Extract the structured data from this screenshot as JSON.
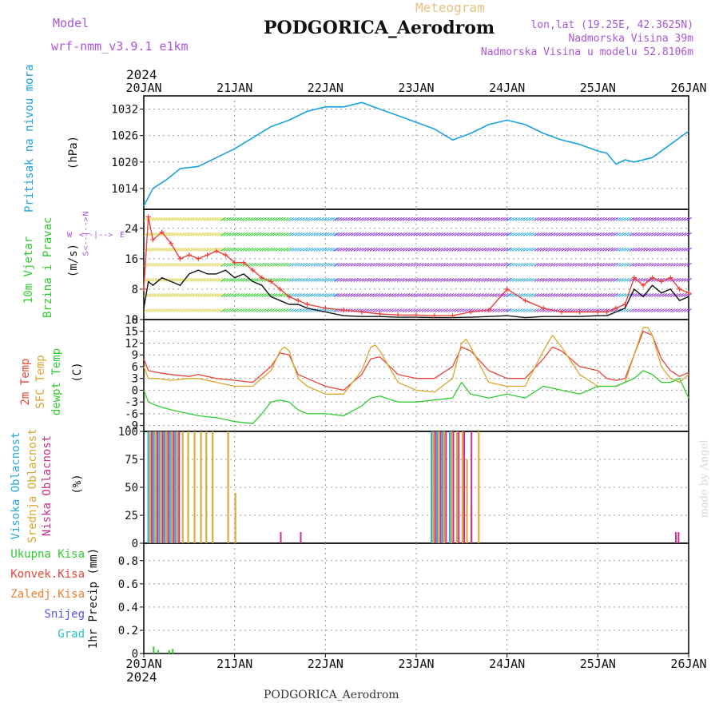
{
  "header": {
    "model_label": "Model",
    "model_name": "wrf-nmm_v3.9.1  e1km",
    "meteogram_label": "Meteogram",
    "station": "PODGORICA_Aerodrom",
    "lonlat": "lon,lat (19.25E, 42.3625N)",
    "elevation": "Nadmorska Visina 39m",
    "model_elevation": "Nadmorska Visina u modelu 52.8106m",
    "footer_station": "PODGORICA_Aerodrom",
    "credit": "made by Angel",
    "year_top": "2024",
    "year_bottom": "2024"
  },
  "colors": {
    "pressure": "#1ba1e2",
    "temp2m": "#e8443a",
    "sfc_temp": "#d9a62e",
    "dewpt": "#2ecc2e",
    "wind_speed": "#111111",
    "gust": "#e8443a",
    "high_cloud": "#29a9e0",
    "mid_cloud": "#d9a62e",
    "low_cloud": "#cc2d8f",
    "precip_total": "#2ecc2e",
    "purple": "#aa55dd",
    "grid": "#999999"
  },
  "labels": {
    "pressure": [
      "Pritisak na nivou mora",
      "(hPa)"
    ],
    "wind": [
      "10m Vjetar",
      "Brzina i Pravac",
      "(m/s)"
    ],
    "wind_compass": [
      "W",
      "<--|-->",
      "E",
      "N",
      "<--|-->",
      "S"
    ],
    "temp": [
      "2m Temp",
      "SFC Temp",
      "dewpt Temp",
      "(C)"
    ],
    "cloud": [
      "Visoka Oblacnost",
      "Srednja Oblacnost",
      "Niska Oblacnost",
      "(%)"
    ],
    "precip_legend": [
      "Ukupna Kisa",
      "Konvek.Kisa",
      "Zaledj.Kisa",
      "Snijeg",
      "Grad"
    ],
    "precip_unit": "1hr Precip (mm)"
  },
  "chart_data": {
    "type": "line",
    "x_days": [
      "20JAN",
      "21JAN",
      "22JAN",
      "23JAN",
      "24JAN",
      "25JAN",
      "26JAN"
    ],
    "panels": [
      {
        "name": "pressure",
        "ylabel": "(hPa)",
        "yticks": [
          1014,
          1020,
          1026,
          1032
        ],
        "ylim": [
          1010,
          1035
        ],
        "series": [
          {
            "key": "pressure",
            "x": [
              0,
              0.1,
              0.25,
              0.4,
              0.6,
              0.8,
              1.0,
              1.2,
              1.4,
              1.6,
              1.8,
              2.0,
              2.2,
              2.4,
              2.6,
              2.8,
              3.0,
              3.2,
              3.4,
              3.6,
              3.8,
              4.0,
              4.2,
              4.4,
              4.6,
              4.8,
              5.0,
              5.1,
              5.2,
              5.3,
              5.4,
              5.6,
              5.8,
              6.0
            ],
            "y": [
              1010,
              1014,
              1016,
              1018.5,
              1019,
              1021,
              1023,
              1025.5,
              1028,
              1029.5,
              1031.5,
              1032.5,
              1032.5,
              1033.5,
              1032,
              1030.5,
              1029,
              1027.5,
              1025,
              1026.5,
              1028.5,
              1029.5,
              1028.5,
              1026.5,
              1025,
              1024,
              1022.5,
              1022,
              1019.5,
              1020.5,
              1020,
              1021,
              1024,
              1027
            ]
          }
        ]
      },
      {
        "name": "wind",
        "ylabel": "(m/s)",
        "yticks": [
          0,
          8,
          16,
          24
        ],
        "ylim": [
          0,
          29
        ],
        "series": [
          {
            "key": "wind_speed",
            "x": [
              0,
              0.05,
              0.1,
              0.2,
              0.3,
              0.4,
              0.5,
              0.6,
              0.7,
              0.8,
              0.9,
              1.0,
              1.1,
              1.2,
              1.3,
              1.4,
              1.5,
              1.6,
              1.7,
              1.8,
              2.0,
              2.2,
              2.4,
              2.6,
              2.8,
              3.0,
              3.2,
              3.4,
              3.6,
              3.8,
              4.0,
              4.2,
              4.4,
              4.6,
              4.8,
              5.0,
              5.1,
              5.2,
              5.3,
              5.4,
              5.5,
              5.6,
              5.7,
              5.8,
              5.9,
              6.0
            ],
            "y": [
              3,
              10,
              9,
              11,
              10,
              9,
              12,
              13,
              12,
              12,
              13,
              11,
              12,
              10,
              9,
              6,
              5,
              4,
              4,
              3,
              2,
              1,
              0.8,
              0.8,
              0.6,
              0.6,
              0.5,
              0.5,
              0.6,
              0.8,
              1,
              0.5,
              0.8,
              0.8,
              0.8,
              1,
              1,
              2,
              3,
              8,
              6,
              9,
              7,
              8,
              5,
              6
            ]
          },
          {
            "key": "gust",
            "x": [
              0,
              0.05,
              0.1,
              0.2,
              0.3,
              0.4,
              0.5,
              0.6,
              0.7,
              0.8,
              0.9,
              1.0,
              1.1,
              1.2,
              1.3,
              1.4,
              1.5,
              1.6,
              1.7,
              1.8,
              2.0,
              2.2,
              2.4,
              2.6,
              2.8,
              3.0,
              3.2,
              3.4,
              3.6,
              3.8,
              4.0,
              4.2,
              4.4,
              4.6,
              4.8,
              5.0,
              5.1,
              5.2,
              5.3,
              5.4,
              5.5,
              5.6,
              5.7,
              5.8,
              5.9,
              6.0
            ],
            "y": [
              8,
              27,
              21,
              23,
              20,
              16,
              17,
              16,
              17,
              18,
              17,
              15,
              15,
              13,
              11,
              10,
              8,
              6,
              5,
              4,
              3,
              2.5,
              2,
              1.5,
              1.2,
              1.2,
              1,
              1,
              2,
              2.5,
              8,
              5,
              3,
              2,
              2,
              2,
              2,
              3,
              4,
              11,
              9,
              11,
              10,
              11,
              8,
              7
            ]
          }
        ]
      },
      {
        "name": "temperature",
        "ylabel": "(C)",
        "yticks": [
          -9,
          -6,
          -3,
          0,
          3,
          6,
          9,
          12,
          15,
          18
        ],
        "ylim": [
          -10.5,
          18
        ],
        "series": [
          {
            "key": "temp2m",
            "x": [
              0,
              0.05,
              0.15,
              0.3,
              0.5,
              0.6,
              0.8,
              1.0,
              1.2,
              1.4,
              1.5,
              1.6,
              1.7,
              1.8,
              2.0,
              2.2,
              2.4,
              2.5,
              2.6,
              2.8,
              3.0,
              3.2,
              3.4,
              3.5,
              3.6,
              3.8,
              4.0,
              4.2,
              4.4,
              4.5,
              4.6,
              4.8,
              5.0,
              5.1,
              5.2,
              5.3,
              5.4,
              5.5,
              5.6,
              5.7,
              5.8,
              5.9,
              6.0
            ],
            "y": [
              8,
              5,
              4.5,
              4,
              3.5,
              4,
              3,
              2.5,
              2,
              6,
              9.5,
              9,
              4,
              3,
              1,
              0,
              4,
              8,
              8.5,
              4,
              3,
              3,
              6,
              11,
              10,
              5,
              3,
              3,
              8,
              11,
              10,
              6,
              5,
              3,
              2.5,
              3,
              9,
              15,
              14,
              8,
              5,
              3.5,
              4.5
            ]
          },
          {
            "key": "sfc_temp",
            "x": [
              0,
              0.05,
              0.15,
              0.3,
              0.5,
              0.6,
              0.8,
              1.0,
              1.2,
              1.4,
              1.5,
              1.55,
              1.6,
              1.7,
              1.8,
              2.0,
              2.2,
              2.4,
              2.5,
              2.55,
              2.6,
              2.8,
              3.0,
              3.2,
              3.4,
              3.5,
              3.55,
              3.6,
              3.8,
              4.0,
              4.2,
              4.4,
              4.5,
              4.6,
              4.8,
              5.0,
              5.1,
              5.2,
              5.3,
              5.4,
              5.5,
              5.55,
              5.6,
              5.7,
              5.8,
              5.9,
              6.0
            ],
            "y": [
              6,
              3,
              3,
              2.5,
              3,
              3,
              2,
              1,
              1,
              5,
              10,
              11,
              10,
              3,
              1,
              -1,
              -1,
              5,
              11,
              11.5,
              10,
              2,
              0,
              -0.5,
              3,
              12,
              13,
              11,
              2,
              1,
              1,
              10,
              14,
              11,
              4,
              1,
              1,
              1,
              2,
              9,
              16,
              16,
              14,
              6,
              3,
              2,
              4
            ]
          },
          {
            "key": "dewpt",
            "x": [
              0,
              0.05,
              0.15,
              0.3,
              0.5,
              0.6,
              0.8,
              1.0,
              1.2,
              1.3,
              1.4,
              1.5,
              1.6,
              1.7,
              1.8,
              2.0,
              2.2,
              2.4,
              2.5,
              2.6,
              2.8,
              3.0,
              3.2,
              3.4,
              3.5,
              3.6,
              3.8,
              4.0,
              4.2,
              4.4,
              4.6,
              4.8,
              5.0,
              5.2,
              5.3,
              5.4,
              5.5,
              5.6,
              5.7,
              5.8,
              5.9,
              6.0
            ],
            "y": [
              0,
              -3,
              -4,
              -5,
              -6,
              -6.5,
              -7,
              -8,
              -8.5,
              -6,
              -3,
              -2.5,
              -3,
              -5,
              -6,
              -6,
              -6.5,
              -4,
              -2,
              -1.5,
              -3,
              -3,
              -2.5,
              -2,
              2,
              -1,
              -2,
              -1,
              -2,
              1,
              0,
              -1,
              1,
              1,
              2,
              3,
              5,
              4,
              2,
              2,
              3,
              -2
            ]
          }
        ]
      },
      {
        "name": "cloud",
        "ylabel": "(%)",
        "yticks": [
          0,
          25,
          50,
          75,
          100
        ],
        "ylim": [
          0,
          100
        ],
        "bars": [
          {
            "key": "high_cloud",
            "x": [
              0.04,
              0.1,
              0.16,
              0.22,
              0.28,
              0.34,
              3.16,
              3.22,
              3.28,
              3.36
            ],
            "y": [
              100,
              100,
              100,
              100,
              100,
              100,
              100,
              100,
              100,
              100
            ]
          },
          {
            "key": "mid_cloud",
            "x": [
              0.06,
              0.12,
              0.18,
              0.24,
              0.3,
              0.36,
              0.42,
              0.48,
              0.55,
              0.62,
              0.68,
              0.75,
              0.92,
              1.0,
              3.18,
              3.24,
              3.3,
              3.38,
              3.44,
              3.5,
              3.55,
              3.6,
              3.68
            ],
            "y": [
              100,
              100,
              100,
              100,
              100,
              100,
              100,
              100,
              100,
              100,
              100,
              100,
              100,
              45,
              100,
              100,
              100,
              100,
              100,
              100,
              75,
              33,
              100
            ]
          },
          {
            "key": "low_cloud",
            "x": [
              0.08,
              0.14,
              0.2,
              0.26,
              0.32,
              0.38,
              1.5,
              1.72,
              3.2,
              3.26,
              3.32,
              3.4,
              3.46,
              3.52,
              3.6,
              5.85,
              5.88
            ],
            "y": [
              100,
              100,
              100,
              100,
              100,
              100,
              10,
              10,
              100,
              100,
              100,
              100,
              100,
              100,
              100,
              10,
              10
            ]
          }
        ]
      },
      {
        "name": "precip",
        "ylabel": "1hr Precip (mm)",
        "yticks": [
          0,
          0.2,
          0.4,
          0.6,
          0.8
        ],
        "ylim": [
          0,
          0.95
        ],
        "bars": [
          {
            "key": "precip_total",
            "x": [
              0.1,
              0.15,
              0.27,
              0.31
            ],
            "y": [
              0.06,
              0.03,
              0.03,
              0.04
            ]
          }
        ]
      }
    ]
  }
}
